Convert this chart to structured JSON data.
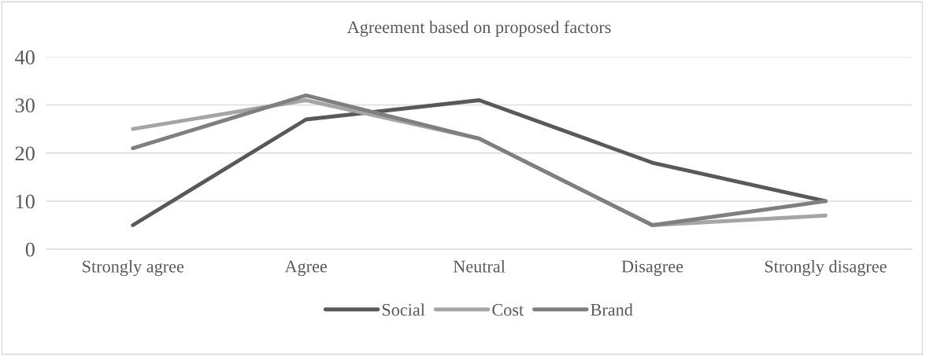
{
  "chart_data": {
    "type": "line",
    "title": "Agreement based on proposed factors",
    "categories": [
      "Strongly agree",
      "Agree",
      "Neutral",
      "Disagree",
      "Strongly disagree"
    ],
    "series": [
      {
        "name": "Social",
        "color": "#595959",
        "values": [
          5,
          27,
          31,
          18,
          10
        ]
      },
      {
        "name": "Cost",
        "color": "#a5a5a5",
        "values": [
          25,
          31,
          23,
          5,
          7
        ]
      },
      {
        "name": "Brand",
        "color": "#7f7f7f",
        "values": [
          21,
          32,
          23,
          5,
          10
        ]
      }
    ],
    "ylim": [
      0,
      40
    ],
    "yticks": [
      0,
      10,
      20,
      30,
      40
    ],
    "grid": "y",
    "legend": "bottom",
    "line_style": "solid",
    "marker": "none"
  }
}
